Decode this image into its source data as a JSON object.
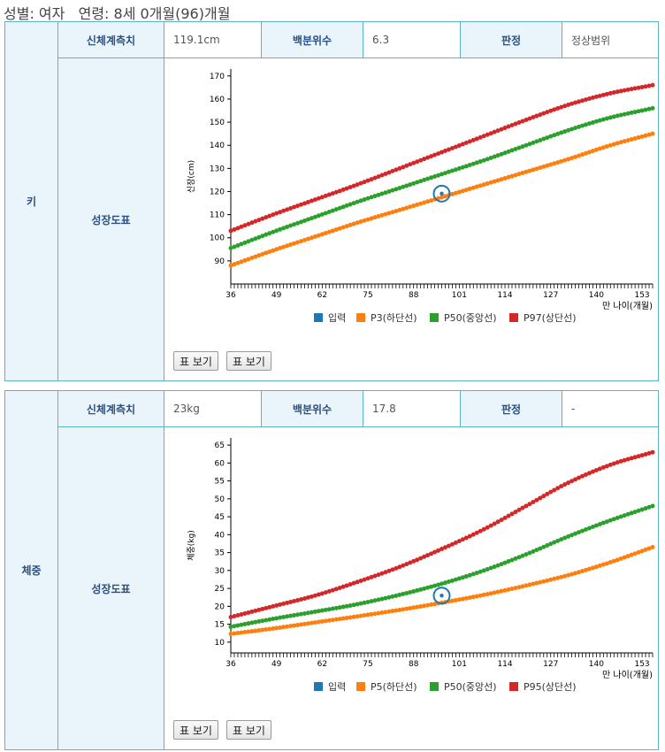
{
  "header": {
    "text": "성별: 여자   연령: 8세 0개월(96)개월"
  },
  "labels": {
    "measure": "신체계측치",
    "percentile": "백분위수",
    "judgement": "판정",
    "growth_chart": "성장도표"
  },
  "height": {
    "title": "키",
    "measure_value": "119.1cm",
    "percentile_value": "6.3",
    "judgement_value": "정상범위",
    "button_labels": [
      "표 보기",
      "표 보기"
    ]
  },
  "weight": {
    "title": "체중",
    "measure_value": "23kg",
    "percentile_value": "17.8",
    "judgement_value": "-",
    "button_labels": [
      "표 보기",
      "표 보기"
    ]
  },
  "chart_data": [
    {
      "type": "line",
      "ylabel": "신장(cm)",
      "xlabel": "만 나이(개월)",
      "x_ticks": [
        36,
        49,
        62,
        75,
        88,
        101,
        114,
        127,
        140,
        153
      ],
      "y_ticks": [
        90,
        100,
        110,
        120,
        130,
        140,
        150,
        160,
        170
      ],
      "xlim": [
        36,
        156
      ],
      "ylim": [
        80,
        173
      ],
      "legend": [
        "입력",
        "P3(하단선)",
        "P50(중앙선)",
        "P97(상단선)"
      ],
      "colors": {
        "input": "#1f77b4",
        "low": "#ff7f0e",
        "mid": "#2ca02c",
        "high": "#d62728"
      },
      "series": [
        {
          "name": "P3(하단선)",
          "x": [
            36,
            48,
            60,
            72,
            84,
            96,
            108,
            120,
            132,
            144,
            156
          ],
          "values": [
            88,
            94.5,
            100.5,
            106.5,
            112,
            117.5,
            123,
            128.5,
            134,
            140,
            145
          ]
        },
        {
          "name": "P50(중앙선)",
          "x": [
            36,
            48,
            60,
            72,
            84,
            96,
            108,
            120,
            132,
            144,
            156
          ],
          "values": [
            95.5,
            102.5,
            109,
            115.5,
            121.5,
            127.5,
            133.5,
            140,
            146.5,
            152,
            156
          ]
        },
        {
          "name": "P97(상단선)",
          "x": [
            36,
            48,
            60,
            72,
            84,
            96,
            108,
            120,
            132,
            144,
            156
          ],
          "values": [
            103,
            110,
            116.5,
            123,
            130,
            137,
            144,
            151,
            157.5,
            162.5,
            166
          ]
        }
      ],
      "input": {
        "name": "입력",
        "x": 96,
        "y": 119.1
      }
    },
    {
      "type": "line",
      "ylabel": "체중(kg)",
      "xlabel": "만 나이(개월)",
      "x_ticks": [
        36,
        49,
        62,
        75,
        88,
        101,
        114,
        127,
        140,
        153
      ],
      "y_ticks": [
        10,
        15,
        20,
        25,
        30,
        35,
        40,
        45,
        50,
        55,
        60,
        65
      ],
      "xlim": [
        36,
        156
      ],
      "ylim": [
        7,
        67
      ],
      "legend": [
        "입력",
        "P5(하단선)",
        "P50(중앙선)",
        "P95(상단선)"
      ],
      "colors": {
        "input": "#1f77b4",
        "low": "#ff7f0e",
        "mid": "#2ca02c",
        "high": "#d62728"
      },
      "series": [
        {
          "name": "P5(하단선)",
          "x": [
            36,
            48,
            60,
            72,
            84,
            96,
            108,
            120,
            132,
            144,
            156
          ],
          "values": [
            12.3,
            13.8,
            15.5,
            17.2,
            19,
            21,
            23.2,
            25.8,
            28.7,
            32.3,
            36.5
          ]
        },
        {
          "name": "P50(중앙선)",
          "x": [
            36,
            48,
            60,
            72,
            84,
            96,
            108,
            120,
            132,
            144,
            156
          ],
          "values": [
            14.3,
            16.5,
            18.5,
            20.6,
            23.2,
            26.3,
            30,
            34.5,
            39.5,
            44,
            48
          ]
        },
        {
          "name": "P95(상단선)",
          "x": [
            36,
            48,
            60,
            72,
            84,
            96,
            108,
            120,
            132,
            144,
            156
          ],
          "values": [
            17,
            20,
            23,
            26.8,
            31,
            36,
            41.5,
            48,
            54.5,
            59.5,
            63
          ]
        }
      ],
      "input": {
        "name": "입력",
        "x": 96,
        "y": 23
      }
    }
  ]
}
